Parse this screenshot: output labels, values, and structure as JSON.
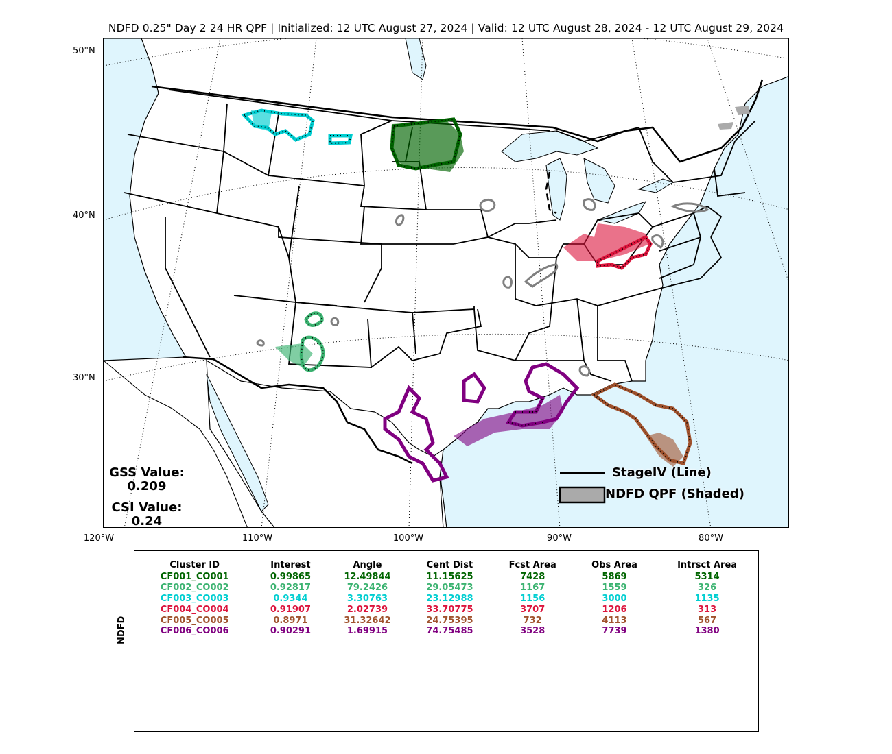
{
  "title": "NDFD 0.25\" Day 2 24 HR QPF | Initialized: 12 UTC August 27, 2024 | Valid: 12 UTC August 28, 2024 - 12 UTC August 29, 2024",
  "map": {
    "lat_labels": [
      "50°N",
      "40°N",
      "30°N"
    ],
    "lon_labels": [
      "120°W",
      "110°W",
      "100°W",
      "90°W",
      "80°W"
    ],
    "gss_label": "GSS Value:",
    "gss_value": "0.209",
    "csi_label": "CSI Value:",
    "csi_value": "0.24",
    "legend": {
      "line_label": "StageIV (Line)",
      "shaded_label": "NDFD QPF (Shaded)"
    },
    "colors": {
      "ocean": "#dff5fd",
      "land": "#ffffff",
      "unmatched": "#808080",
      "CF001": "#006400",
      "CF002": "#3cb371",
      "CF003": "#00ced1",
      "CF004": "#dc143c",
      "CF005": "#a0522d",
      "CF006": "#800080"
    }
  },
  "stats": {
    "side_label": "NDFD",
    "headers": [
      "Cluster ID",
      "Interest",
      "Angle",
      "Cent Dist",
      "Fcst Area",
      "Obs Area",
      "Intrsct Area"
    ],
    "rows": [
      {
        "color": "#006400",
        "cells": [
          "CF001_CO001",
          "0.99865",
          "12.49844",
          "11.15625",
          "7428",
          "5869",
          "5314"
        ]
      },
      {
        "color": "#3cb371",
        "cells": [
          "CF002_CO002",
          "0.92817",
          "79.2426",
          "29.05473",
          "1167",
          "1559",
          "326"
        ]
      },
      {
        "color": "#00ced1",
        "cells": [
          "CF003_CO003",
          "0.9344",
          "3.30763",
          "23.12988",
          "1156",
          "3000",
          "1135"
        ]
      },
      {
        "color": "#dc143c",
        "cells": [
          "CF004_CO004",
          "0.91907",
          "2.02739",
          "33.70775",
          "3707",
          "1206",
          "313"
        ]
      },
      {
        "color": "#a0522d",
        "cells": [
          "CF005_CO005",
          "0.8971",
          "31.32642",
          "24.75395",
          "732",
          "4113",
          "567"
        ]
      },
      {
        "color": "#800080",
        "cells": [
          "CF006_CO006",
          "0.90291",
          "1.69915",
          "74.75485",
          "3528",
          "7739",
          "1380"
        ]
      }
    ]
  }
}
